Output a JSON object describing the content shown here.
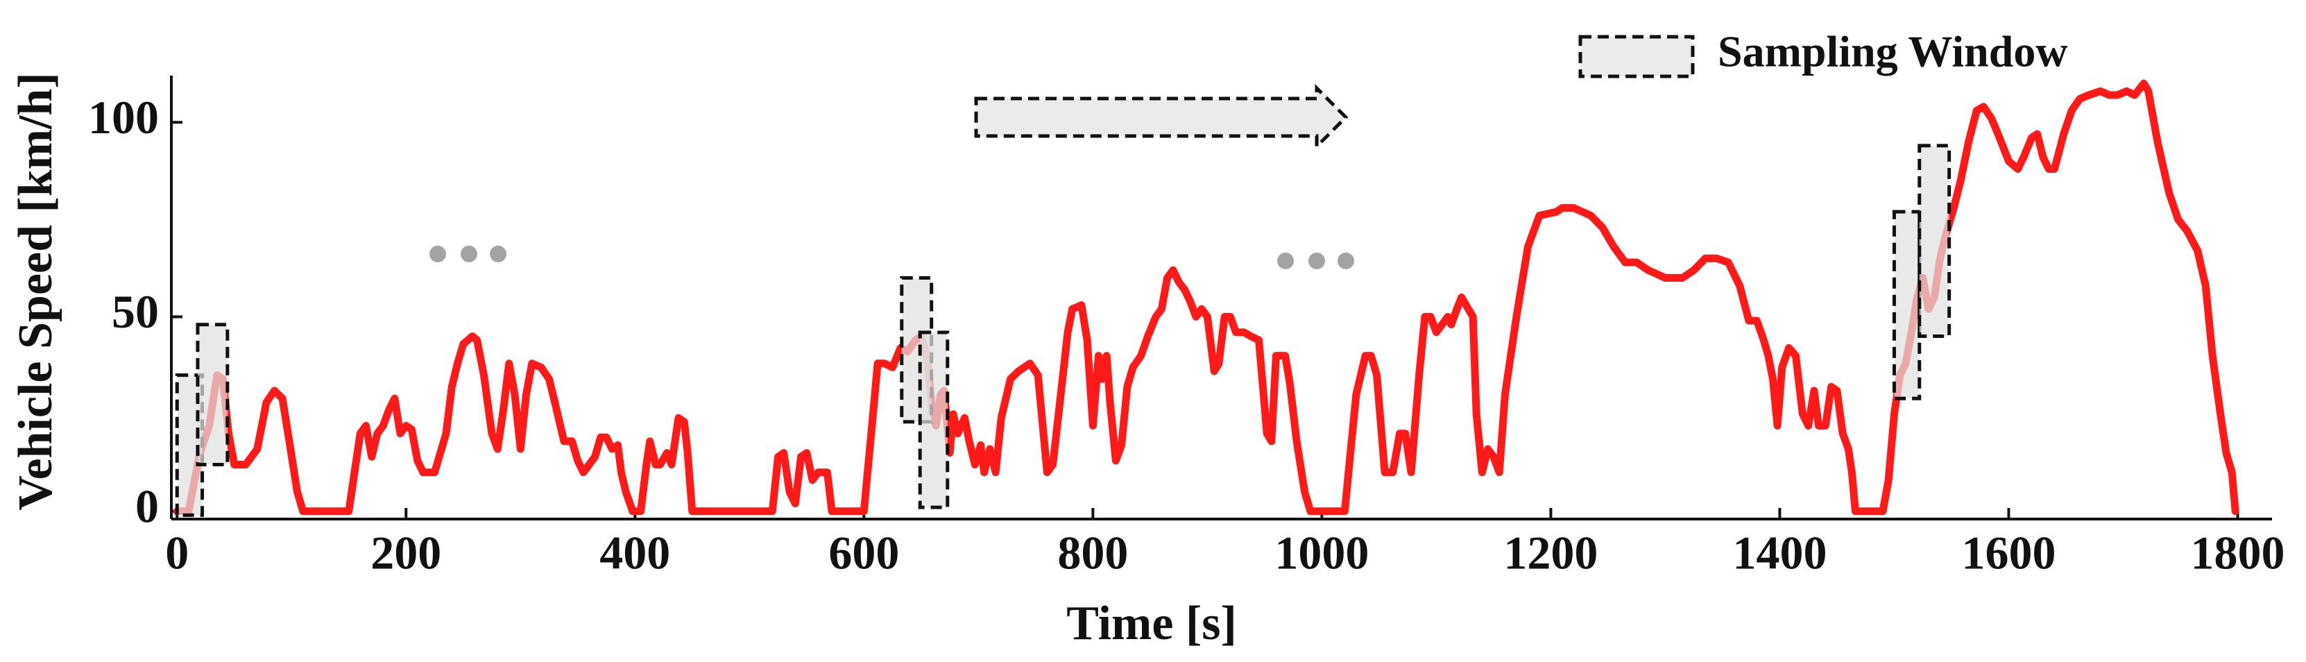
{
  "chart_data": {
    "type": "line",
    "xlabel": "Time [s]",
    "ylabel": "Vehicle Speed [km/h]",
    "legend_label": "Sampling Window",
    "color": "#ff1a1a",
    "xlim": [
      -5,
      1830
    ],
    "xticks": [
      0,
      200,
      400,
      600,
      800,
      1000,
      1200,
      1400,
      1600,
      1800
    ],
    "ylim": [
      -2,
      112
    ],
    "yticks": [
      0,
      50,
      100
    ],
    "x": [
      0,
      10,
      20,
      28,
      35,
      40,
      45,
      50,
      60,
      70,
      78,
      85,
      92,
      98,
      105,
      110,
      150,
      155,
      160,
      165,
      170,
      175,
      180,
      185,
      190,
      195,
      200,
      205,
      210,
      215,
      225,
      235,
      240,
      245,
      250,
      258,
      262,
      268,
      275,
      280,
      285,
      290,
      295,
      300,
      305,
      310,
      318,
      325,
      330,
      338,
      345,
      350,
      355,
      365,
      370,
      375,
      380,
      385,
      388,
      392,
      398,
      405,
      410,
      413,
      418,
      422,
      428,
      432,
      438,
      443,
      446,
      450,
      520,
      525,
      530,
      535,
      540,
      545,
      550,
      555,
      560,
      568,
      572,
      600,
      608,
      612,
      618,
      625,
      632,
      638,
      645,
      650,
      655,
      660,
      663,
      667,
      670,
      675,
      678,
      682,
      688,
      692,
      697,
      702,
      705,
      710,
      715,
      720,
      728,
      735,
      745,
      752,
      760,
      765,
      770,
      778,
      782,
      790,
      795,
      800,
      805,
      808,
      812,
      815,
      820,
      825,
      830,
      835,
      842,
      848,
      855,
      860,
      865,
      870,
      875,
      880,
      885,
      890,
      895,
      900,
      906,
      910,
      915,
      920,
      925,
      932,
      938,
      945,
      952,
      956,
      960,
      968,
      972,
      978,
      985,
      990,
      1020,
      1025,
      1030,
      1038,
      1043,
      1048,
      1055,
      1062,
      1068,
      1073,
      1078,
      1085,
      1090,
      1095,
      1100,
      1105,
      1110,
      1113,
      1118,
      1122,
      1128,
      1132,
      1135,
      1140,
      1145,
      1150,
      1155,
      1160,
      1170,
      1180,
      1190,
      1205,
      1210,
      1220,
      1235,
      1245,
      1255,
      1265,
      1275,
      1285,
      1300,
      1315,
      1325,
      1335,
      1345,
      1355,
      1365,
      1373,
      1380,
      1386,
      1390,
      1394,
      1398,
      1402,
      1408,
      1414,
      1420,
      1425,
      1430,
      1434,
      1440,
      1445,
      1450,
      1455,
      1460,
      1463,
      1466,
      1490,
      1495,
      1500,
      1505,
      1510,
      1515,
      1520,
      1525,
      1530,
      1535,
      1540,
      1545,
      1552,
      1558,
      1565,
      1572,
      1578,
      1585,
      1592,
      1600,
      1608,
      1613,
      1620,
      1625,
      1630,
      1635,
      1640,
      1648,
      1655,
      1662,
      1670,
      1680,
      1688,
      1695,
      1703,
      1710,
      1718,
      1722,
      1730,
      1740,
      1748,
      1756,
      1765,
      1772,
      1778,
      1785,
      1790,
      1795,
      1798
    ],
    "values": [
      0,
      0,
      15,
      22,
      35,
      34,
      20,
      12,
      12,
      16,
      28,
      31,
      29,
      18,
      5,
      0,
      0,
      10,
      20,
      22,
      14,
      20,
      22,
      26,
      29,
      20,
      22,
      21,
      13,
      10,
      10,
      20,
      32,
      38,
      43,
      45,
      44,
      35,
      20,
      16,
      26,
      38,
      30,
      16,
      30,
      38,
      37,
      34,
      28,
      18,
      18,
      13,
      10,
      14,
      19,
      19,
      16,
      17,
      10,
      5,
      0,
      0,
      12,
      18,
      12,
      12,
      15,
      12,
      24,
      23,
      15,
      0,
      0,
      14,
      15,
      5,
      2,
      14,
      15,
      8,
      10,
      10,
      0,
      0,
      25,
      38,
      38,
      37,
      42,
      41,
      44,
      45,
      40,
      25,
      22,
      30,
      31,
      15,
      25,
      20,
      24,
      18,
      12,
      17,
      10,
      16,
      10,
      24,
      34,
      36,
      38,
      35,
      10,
      12,
      25,
      46,
      52,
      53,
      44,
      22,
      40,
      34,
      40,
      28,
      13,
      17,
      32,
      37,
      40,
      45,
      50,
      52,
      60,
      62,
      59,
      57,
      54,
      50,
      52,
      50,
      36,
      38,
      50,
      50,
      46,
      46,
      45,
      44,
      20,
      18,
      40,
      40,
      33,
      18,
      5,
      0,
      0,
      15,
      30,
      40,
      40,
      35,
      10,
      10,
      20,
      20,
      10,
      35,
      50,
      50,
      46,
      48,
      50,
      48,
      52,
      55,
      52,
      50,
      25,
      10,
      16,
      14,
      10,
      30,
      50,
      68,
      76,
      77,
      78,
      78,
      76,
      73,
      68,
      64,
      64,
      62,
      60,
      60,
      62,
      65,
      65,
      64,
      58,
      49,
      49,
      44,
      40,
      34,
      22,
      37,
      42,
      40,
      25,
      22,
      31,
      22,
      22,
      32,
      31,
      20,
      16,
      10,
      0,
      0,
      8,
      25,
      35,
      38,
      46,
      55,
      60,
      52,
      55,
      65,
      71,
      78,
      85,
      95,
      103,
      104,
      101,
      96,
      90,
      88,
      91,
      96,
      97,
      91,
      88,
      88,
      97,
      103,
      106,
      107,
      108,
      107,
      107,
      108,
      107,
      110,
      108,
      95,
      82,
      75,
      72,
      67,
      58,
      40,
      25,
      15,
      10,
      0
    ],
    "sampling_windows": [
      {
        "x": [
          0,
          22
        ],
        "y": [
          -1,
          35
        ]
      },
      {
        "x": [
          18,
          44
        ],
        "y": [
          12,
          48
        ]
      },
      {
        "x": [
          633,
          659
        ],
        "y": [
          23,
          60
        ]
      },
      {
        "x": [
          649,
          673
        ],
        "y": [
          1,
          46
        ]
      },
      {
        "x": [
          1500,
          1522
        ],
        "y": [
          29,
          77
        ]
      },
      {
        "x": [
          1522,
          1548
        ],
        "y": [
          45,
          94
        ]
      }
    ]
  }
}
